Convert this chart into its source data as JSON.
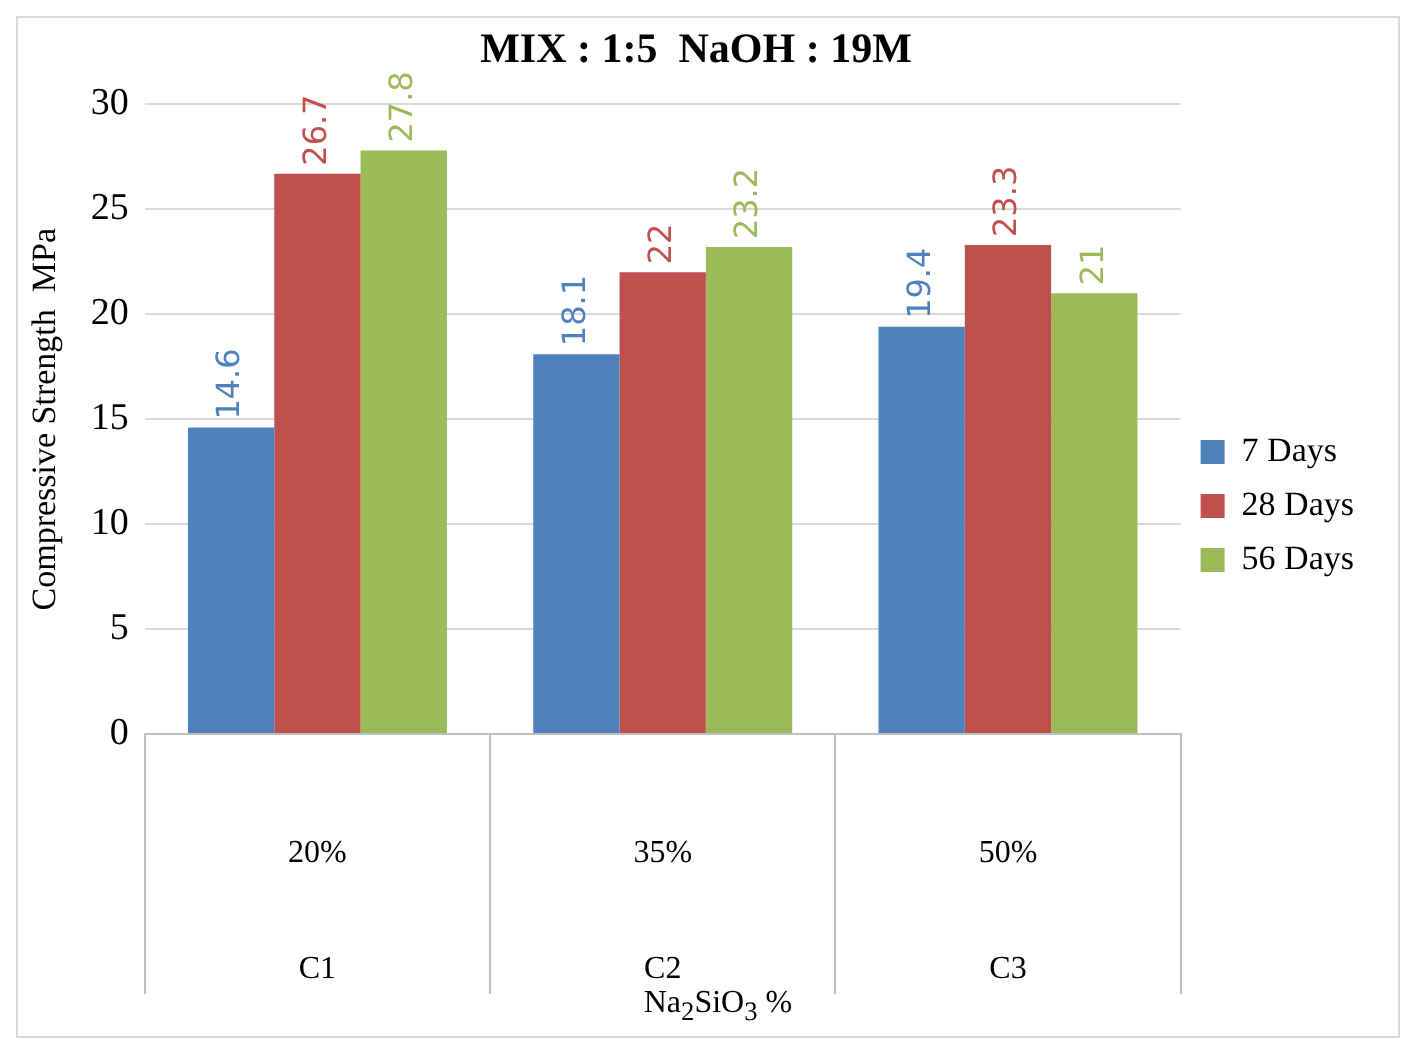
{
  "chart_data": {
    "type": "bar",
    "title": "MIX : 1:5  NaOH : 19M",
    "ylabel": "Compressive Strength  MPa",
    "annotations": [
      "Na$_{2}$SiO$_{3}$ %"
    ],
    "categories": [
      "20%\nC1",
      "35%\nC2",
      "50%\nC3"
    ],
    "series": [
      {
        "name": "7 Days",
        "color": "#4f81bd",
        "values": [
          14.6,
          18.1,
          19.4
        ]
      },
      {
        "name": "28 Days",
        "color": "#c0504d",
        "values": [
          26.7,
          22,
          23.3
        ]
      },
      {
        "name": "56 Days",
        "color": "#9bbb59",
        "values": [
          27.8,
          23.2,
          21
        ]
      }
    ],
    "ylim": [
      0,
      30
    ],
    "yticks": [
      0,
      5,
      10,
      15,
      20,
      25,
      30
    ],
    "grid": "y",
    "legend": "right",
    "data_labels": true
  }
}
